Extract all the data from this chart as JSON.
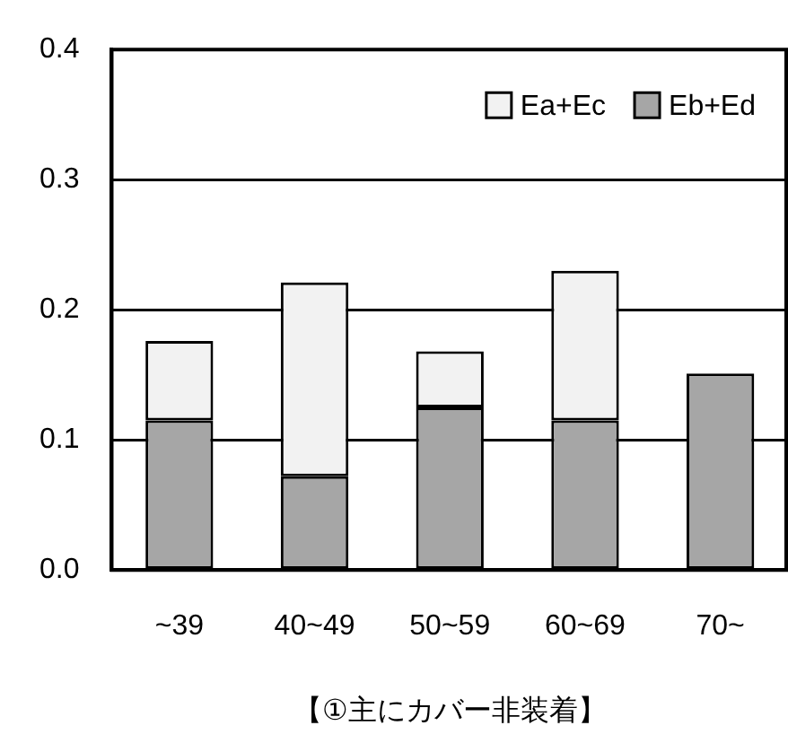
{
  "chart_data": {
    "type": "bar",
    "stacked": true,
    "xlabel": "【①主にカバー非装着】",
    "categories": [
      "~39",
      "40~49",
      "50~59",
      "60~69",
      "70~"
    ],
    "series": [
      {
        "name": "Eb+Ed",
        "color": "#a6a6a6",
        "values": [
          0.115,
          0.072,
          0.125,
          0.115,
          0.151
        ]
      },
      {
        "name": "Ea+Ec",
        "color": "#f2f2f2",
        "values": [
          0.061,
          0.149,
          0.043,
          0.115,
          0
        ]
      }
    ],
    "ylim": [
      0,
      0.4
    ],
    "yticks": [
      {
        "value": 0,
        "label": "0.0"
      },
      0.1,
      0.2,
      0.3,
      0.4
    ],
    "grid": "y",
    "legend": "top right"
  }
}
